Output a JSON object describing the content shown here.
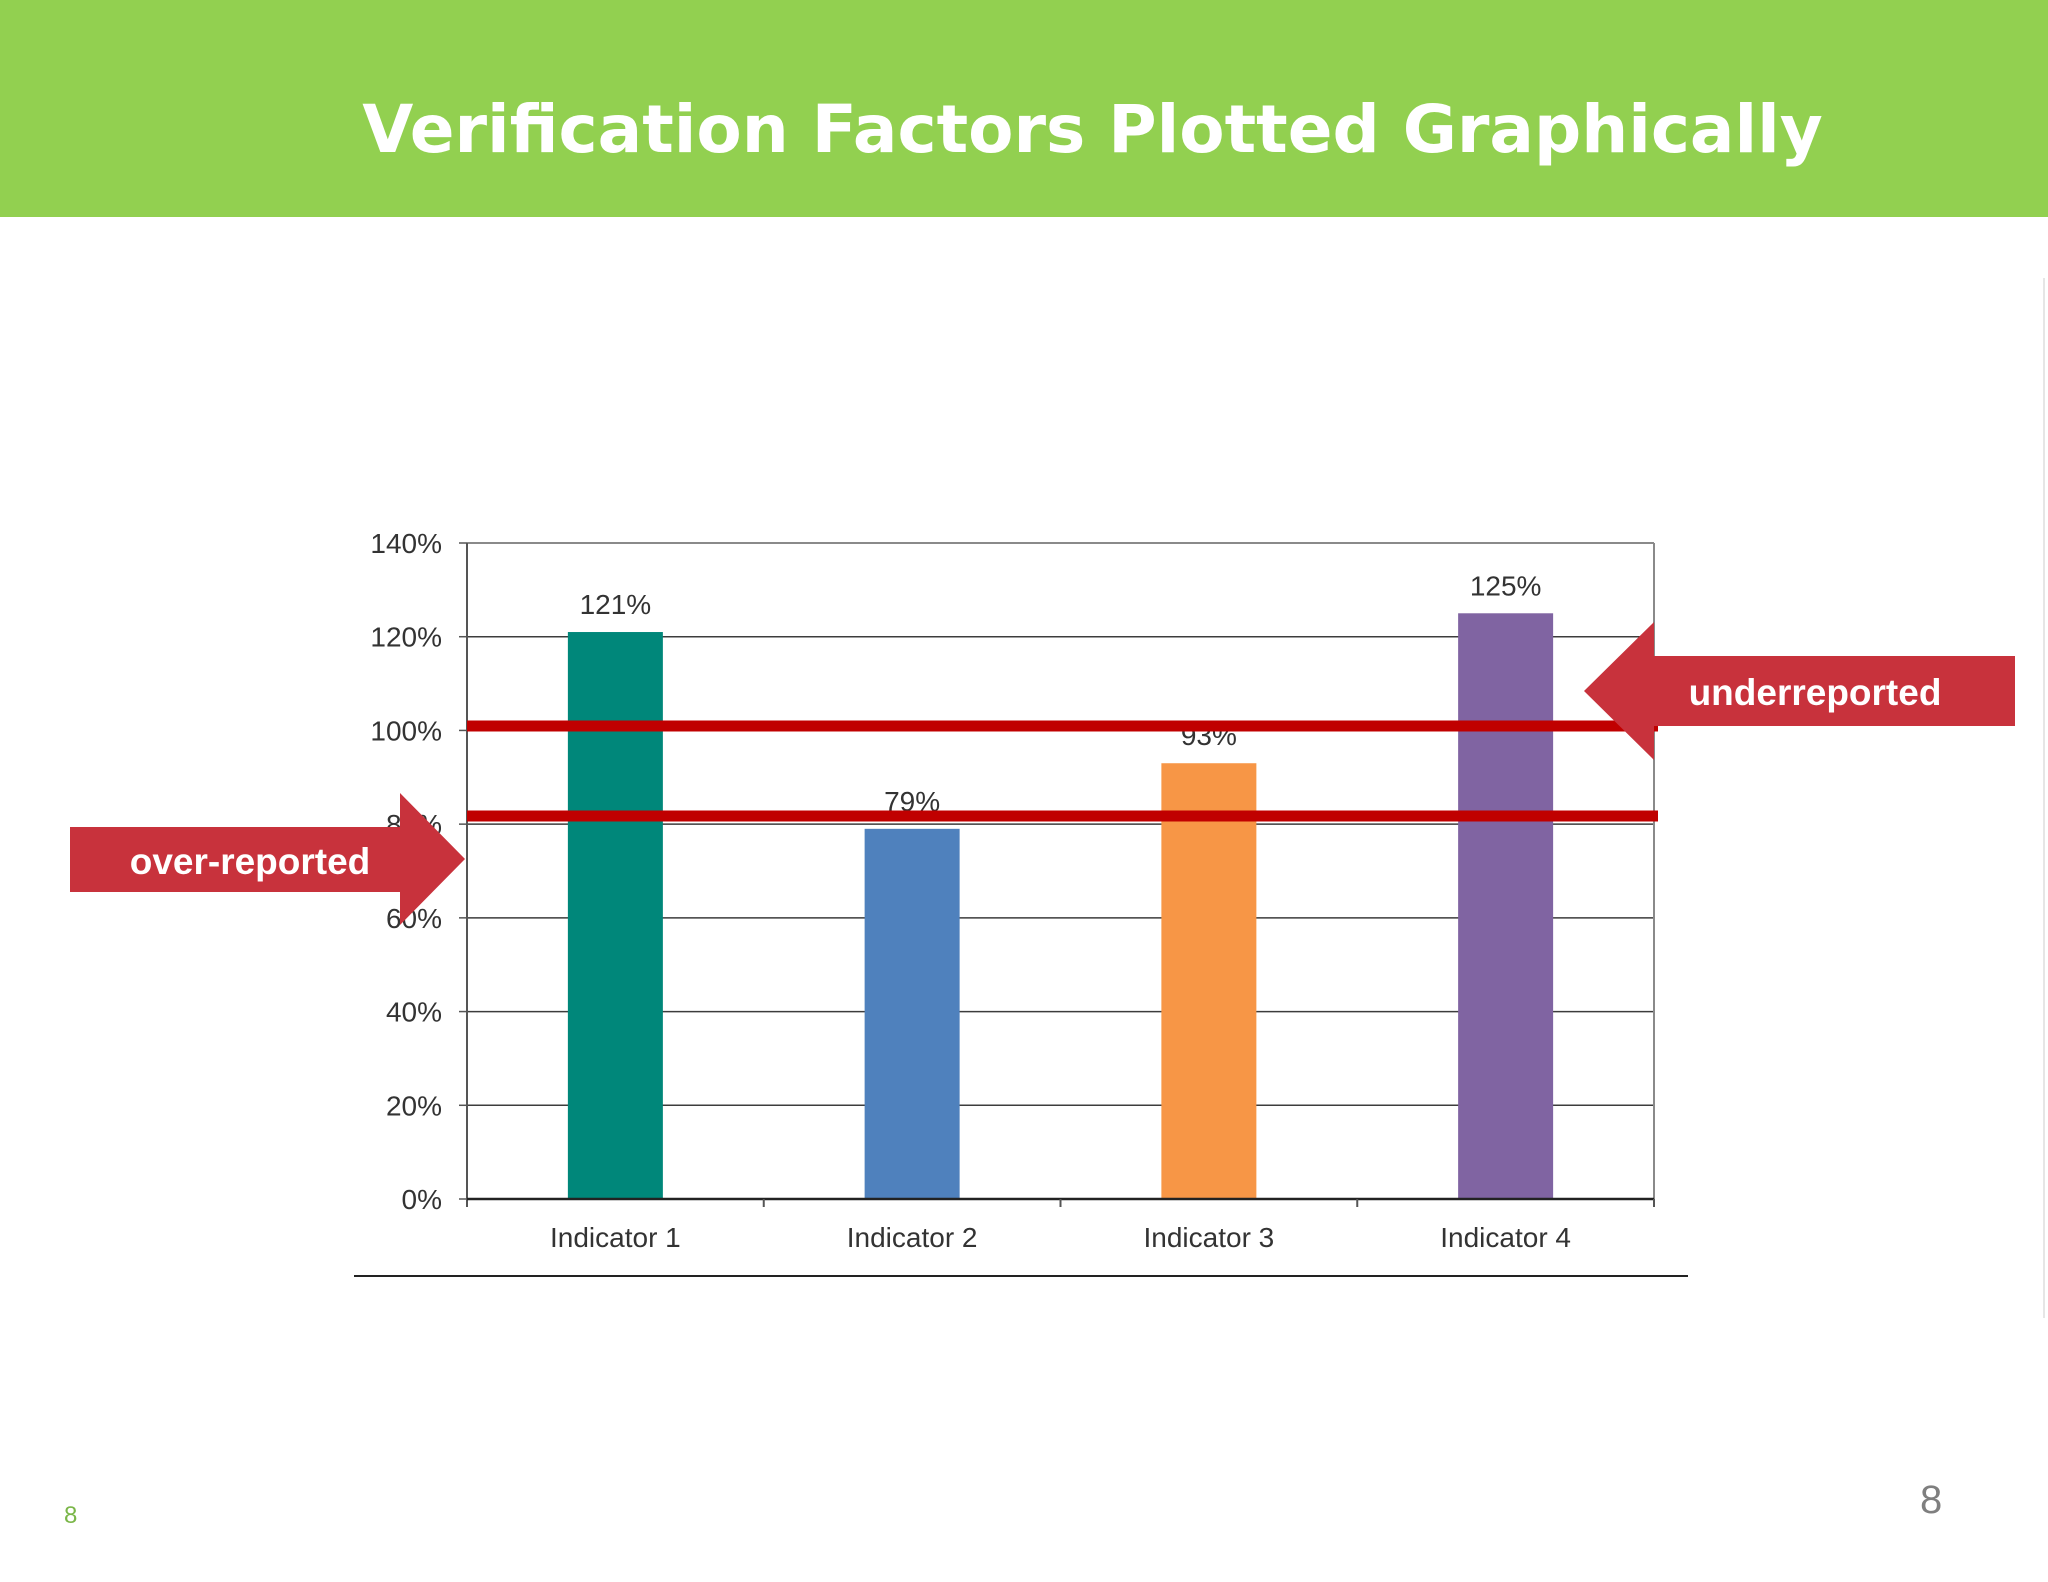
{
  "slide": {
    "title": "Verification Factors Plotted Graphically",
    "page_number_left": "8",
    "page_number_right": "8"
  },
  "annotations": {
    "over_label": "over-reported",
    "under_label": "underreported",
    "color": "#c8323c",
    "line_color": "#c00000",
    "threshold_lines": [
      100,
      80
    ]
  },
  "chart_data": {
    "type": "bar",
    "categories": [
      "Indicator 1",
      "Indicator 2",
      "Indicator 3",
      "Indicator 4"
    ],
    "values": [
      121,
      79,
      93,
      125
    ],
    "data_labels": [
      "121%",
      "79%",
      "93%",
      "125%"
    ],
    "colors": [
      "#00877a",
      "#4f81bd",
      "#f79646",
      "#8064a2"
    ],
    "yticks": [
      "0%",
      "20%",
      "40%",
      "60%",
      "80%",
      "100%",
      "120%",
      "140%"
    ],
    "ylim": [
      0,
      140
    ],
    "grid": true
  }
}
